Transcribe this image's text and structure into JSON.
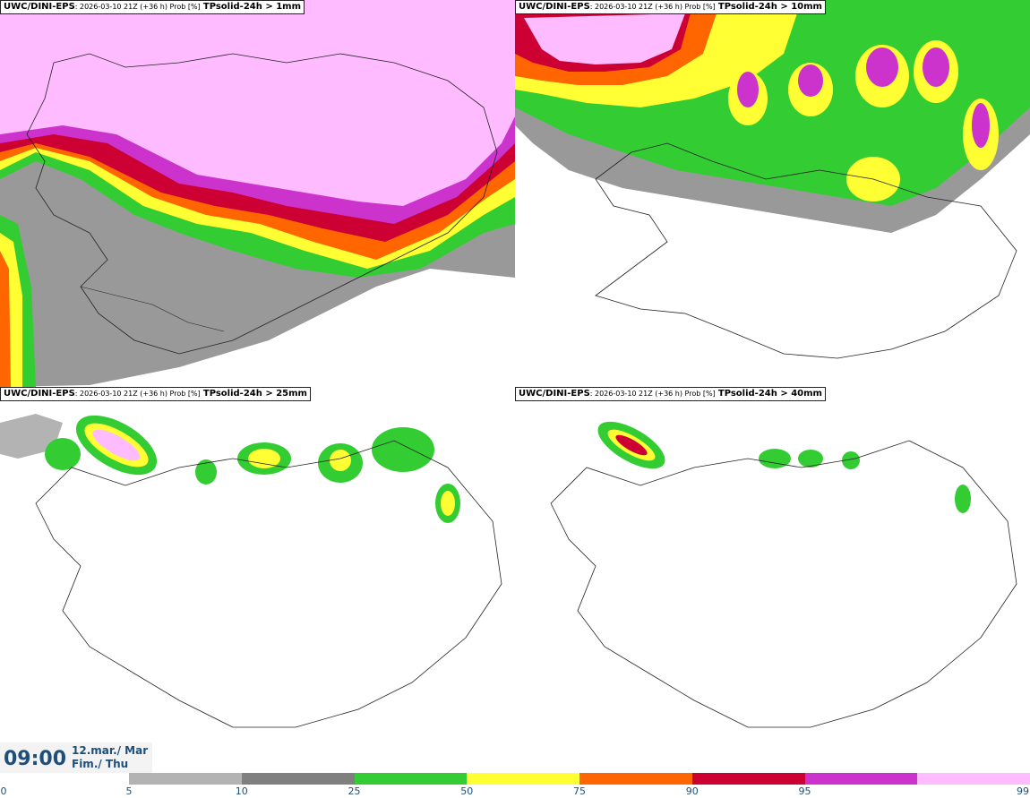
{
  "panels": [
    {
      "source": "UWC/DINI-EPS",
      "meta": ": 2026-03-10 21Z (+36 h) Prob [%]",
      "variable": "TPsolid-24h > 1mm"
    },
    {
      "source": "UWC/DINI-EPS",
      "meta": ": 2026-03-10 21Z (+36 h) Prob [%]",
      "variable": "TPsolid-24h > 10mm"
    },
    {
      "source": "UWC/DINI-EPS",
      "meta": ": 2026-03-10 21Z (+36 h) Prob [%]",
      "variable": "TPsolid-24h > 25mm"
    },
    {
      "source": "UWC/DINI-EPS",
      "meta": ": 2026-03-10 21Z (+36 h) Prob [%]",
      "variable": "TPsolid-24h > 40mm"
    }
  ],
  "valid_time": {
    "clock": "09:00",
    "date_line1": "12.mar./ Mar",
    "date_line2": "Fim./ Thu"
  },
  "colorbar": {
    "ticks": [
      "0",
      "5",
      "10",
      "25",
      "50",
      "75",
      "90",
      "95",
      "99"
    ],
    "colors": [
      "#b3b3b3",
      "#7f7f7f",
      "#33cc33",
      "#ffff33",
      "#ff6600",
      "#cc0033",
      "#cc33cc",
      "#ffbbff"
    ]
  },
  "colors": {
    "probability_ramp": [
      "#ffffff",
      "#b3b3b3",
      "#7f7f7f",
      "#33cc33",
      "#ffff33",
      "#ff6600",
      "#cc0033",
      "#cc33cc",
      "#ffbbff"
    ],
    "label_text": "#1e4f7a",
    "coastline": "#222222"
  }
}
